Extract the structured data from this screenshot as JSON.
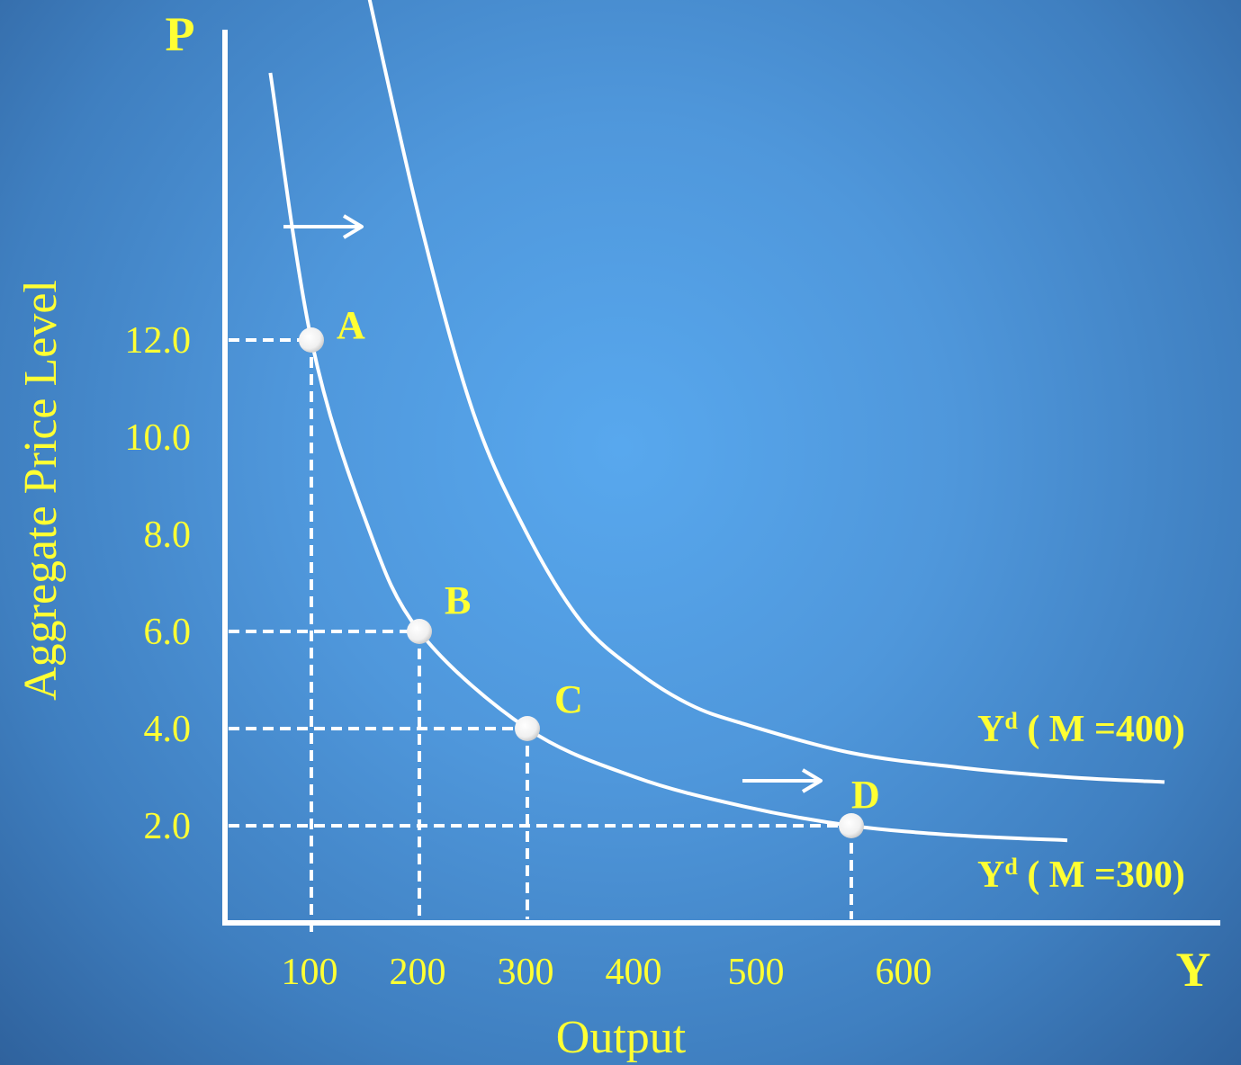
{
  "chart_data": {
    "type": "line",
    "title": "",
    "xlabel": "Output",
    "ylabel": "Aggregate Price Level",
    "x_axis_letter": "Y",
    "y_axis_letter": "P",
    "x_ticks": [
      "100",
      "200",
      "300",
      "400",
      "500",
      "600"
    ],
    "y_ticks": [
      "2.0",
      "4.0",
      "6.0",
      "8.0",
      "10.0",
      "12.0"
    ],
    "xlim": [
      25,
      900
    ],
    "ylim": [
      0,
      20
    ],
    "grid": false,
    "series": [
      {
        "name": "Yd ( M =300)",
        "label_main": "Y",
        "label_sup": "d",
        "label_rest": " ( M =300)",
        "x": [
          62,
          100,
          150,
          200,
          300,
          400,
          500,
          600,
          700,
          800
        ],
        "y": [
          17.5,
          12.0,
          8.3,
          6.0,
          4.0,
          3.0,
          2.4,
          2.0,
          1.8,
          1.7
        ]
      },
      {
        "name": "Yd ( M =400)",
        "label_main": "Y",
        "label_sup": "d",
        "label_rest": " ( M =400)",
        "x": [
          150,
          200,
          250,
          300,
          350,
          400,
          450,
          500,
          600,
          700,
          800,
          890
        ],
        "y": [
          19.4,
          14.5,
          10.5,
          8.0,
          6.2,
          5.2,
          4.5,
          4.1,
          3.5,
          3.2,
          3.0,
          2.9
        ]
      }
    ],
    "points": [
      {
        "label": "A",
        "x": 100,
        "y": 12.0
      },
      {
        "label": "B",
        "x": 200,
        "y": 6.0
      },
      {
        "label": "C",
        "x": 300,
        "y": 4.0
      },
      {
        "label": "D",
        "x": 600,
        "y": 2.0
      }
    ],
    "annotations": [
      "shift-arrow",
      "shift-arrow"
    ]
  }
}
